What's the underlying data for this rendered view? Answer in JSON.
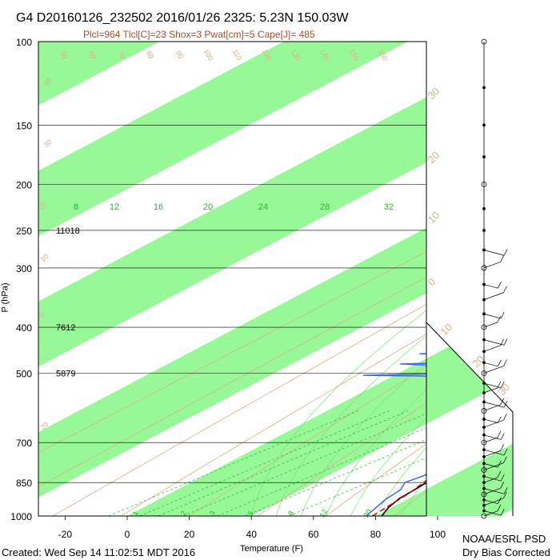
{
  "header": {
    "title": "G4 D20160126_232502 2016/01/26 2325:  5.23N 150.03W",
    "subtitle": "Plcl=964 Tlcl[C]=23 Shox=3 Pwat[cm]=5 Cape[J]= 485"
  },
  "footer": {
    "created": "Created: Wed Sep 14 11:02:51 MDT 2016",
    "org_line1": "NOAA/ESRL PSD",
    "org_line2": "Dry Bias Corrected"
  },
  "colors": {
    "band": "#98f898",
    "temperature": "#000000",
    "dewpoint": "#4169e1",
    "parcel": "#dd0000",
    "dry_adiabat": "#d2b48c",
    "moist_adiabat": "#78e078",
    "mixing_ratio": "#22bb22",
    "header_title": "#000000",
    "header_subtitle": "#a0522d"
  },
  "chart_data": {
    "type": "line",
    "title": "G4 D20160126_232502 2016/01/26 2325:  5.23N 150.03W",
    "xlabel": "Temperature (F)",
    "ylabel": "P (hPa)",
    "log_y": true,
    "xlim": [
      -30,
      110
    ],
    "ylim": [
      1000,
      100
    ],
    "x_ticks": [
      "-20",
      "0",
      "20",
      "40",
      "60",
      "80",
      "100"
    ],
    "y_ticks": [
      "100",
      "150",
      "200",
      "250",
      "300",
      "400",
      "500",
      "700",
      "850",
      "1000"
    ],
    "heights": [
      {
        "p": 250,
        "label": "11018"
      },
      {
        "p": 400,
        "label": "7612"
      },
      {
        "p": 500,
        "label": "5879"
      }
    ],
    "mixing_ratio_top_labels": [
      "8",
      "12",
      "16",
      "20",
      "24",
      "28",
      "32"
    ],
    "mixing_ratio_bottom_labels": [
      "1",
      "2",
      "3",
      "5",
      "8",
      "12",
      "20"
    ],
    "dry_adiabat_labels": [
      "50",
      "60",
      "70",
      "80",
      "90",
      "100",
      "110",
      "120",
      "130",
      "140",
      "150",
      "160"
    ],
    "skew_labels_left": [
      "40",
      "30",
      "20",
      "10",
      "0",
      "20"
    ],
    "skew_labels_right": [
      "30",
      "20",
      "10",
      "0",
      "10",
      "20",
      "30"
    ],
    "series": [
      {
        "name": "Temperature",
        "points": [
          [
            82,
            1000
          ],
          [
            79,
            960
          ],
          [
            77,
            920
          ],
          [
            76.5,
            880
          ],
          [
            76,
            850
          ],
          [
            75,
            800
          ],
          [
            73,
            760
          ],
          [
            72,
            730
          ],
          [
            71,
            700
          ],
          [
            70,
            670
          ],
          [
            69,
            630
          ],
          [
            68,
            600
          ],
          [
            68.5,
            575
          ],
          [
            67,
            550
          ],
          [
            67.5,
            530
          ],
          [
            66,
            510
          ],
          [
            66,
            490
          ],
          [
            64,
            470
          ],
          [
            63.5,
            450
          ],
          [
            62,
            430
          ],
          [
            61,
            410
          ],
          [
            59,
            390
          ],
          [
            57,
            370
          ],
          [
            55,
            355
          ],
          [
            54,
            340
          ],
          [
            52,
            320
          ],
          [
            50,
            300
          ],
          [
            48,
            285
          ],
          [
            46,
            265
          ],
          [
            44,
            250
          ],
          [
            42,
            235
          ],
          [
            40,
            220
          ],
          [
            38,
            210
          ],
          [
            36,
            200
          ],
          [
            34.5,
            192
          ]
        ]
      },
      {
        "name": "Dewpoint",
        "points": [
          [
            77,
            1000
          ],
          [
            75,
            960
          ],
          [
            73,
            920
          ],
          [
            72,
            880
          ],
          [
            69,
            850
          ],
          [
            71,
            820
          ],
          [
            68,
            790
          ],
          [
            66,
            760
          ],
          [
            63,
            720
          ],
          [
            61,
            690
          ],
          [
            58,
            665
          ],
          [
            55,
            645
          ],
          [
            49,
            640
          ],
          [
            55,
            625
          ],
          [
            57,
            605
          ],
          [
            61,
            585
          ],
          [
            63,
            565
          ],
          [
            60,
            550
          ],
          [
            58,
            535
          ],
          [
            50,
            525
          ],
          [
            45,
            515
          ],
          [
            20,
            508
          ],
          [
            -10,
            505
          ],
          [
            20,
            500
          ],
          [
            45,
            495
          ],
          [
            38,
            490
          ],
          [
            10,
            483
          ],
          [
            -5,
            478
          ],
          [
            30,
            472
          ],
          [
            48,
            468
          ],
          [
            30,
            460
          ],
          [
            -5,
            455
          ],
          [
            20,
            450
          ],
          [
            48,
            445
          ],
          [
            25,
            440
          ],
          [
            5,
            432
          ],
          [
            10,
            420
          ],
          [
            10,
            405
          ],
          [
            15,
            395
          ],
          [
            14,
            385
          ],
          [
            17,
            375
          ],
          [
            16,
            365
          ],
          [
            14,
            352
          ],
          [
            5,
            345
          ],
          [
            20,
            338
          ],
          [
            10,
            330
          ],
          [
            0,
            320
          ],
          [
            8,
            313
          ],
          [
            5,
            305
          ],
          [
            17,
            300
          ],
          [
            14,
            290
          ],
          [
            12,
            282
          ],
          [
            11,
            272
          ],
          [
            10,
            262
          ],
          [
            8,
            255
          ],
          [
            7,
            245
          ],
          [
            6,
            235
          ],
          [
            5,
            225
          ],
          [
            4,
            218
          ]
        ]
      },
      {
        "name": "Parcel",
        "points": [
          [
            79,
            1000
          ],
          [
            77,
            900
          ],
          [
            75,
            850
          ],
          [
            73,
            800
          ],
          [
            71,
            700
          ],
          [
            69,
            600
          ],
          [
            67,
            500
          ],
          [
            64,
            450
          ],
          [
            61,
            400
          ],
          [
            57,
            350
          ],
          [
            52,
            300
          ],
          [
            46,
            250
          ],
          [
            39,
            215
          ],
          [
            35.5,
            200
          ],
          [
            34,
            190
          ]
        ]
      }
    ],
    "wind_barbs_pressures": [
      1000,
      975,
      950,
      925,
      900,
      875,
      850,
      825,
      800,
      775,
      750,
      725,
      700,
      675,
      650,
      625,
      600,
      575,
      550,
      525,
      500,
      475,
      450,
      425,
      400,
      375,
      350,
      325,
      300,
      275,
      250,
      225,
      200,
      175,
      150,
      125,
      100
    ],
    "grid": true
  }
}
